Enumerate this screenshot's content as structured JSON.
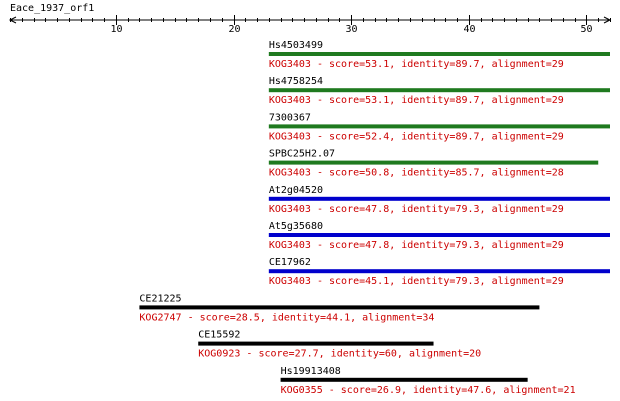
{
  "query_name": "Eace_1937_orf1",
  "axis": {
    "min": 1,
    "max": 52,
    "ticks": [
      10,
      20,
      30,
      40,
      50
    ]
  },
  "colors": {
    "axis": "#000000",
    "label": "#000000",
    "detail": "#cc0000",
    "green": "#1f7a1f",
    "blue": "#0000cc",
    "black": "#000000"
  },
  "hits": [
    {
      "name": "Hs4503499",
      "detail": "KOG3403 - score=53.1, identity=89.7, alignment=29",
      "start": 23,
      "end": 52,
      "color": "green"
    },
    {
      "name": "Hs4758254",
      "detail": "KOG3403 - score=53.1, identity=89.7, alignment=29",
      "start": 23,
      "end": 52,
      "color": "green"
    },
    {
      "name": "7300367",
      "detail": "KOG3403 - score=52.4, identity=89.7, alignment=29",
      "start": 23,
      "end": 52,
      "color": "green"
    },
    {
      "name": "SPBC25H2.07",
      "detail": "KOG3403 - score=50.8, identity=85.7, alignment=28",
      "start": 23,
      "end": 51,
      "color": "green"
    },
    {
      "name": "At2g04520",
      "detail": "KOG3403 - score=47.8, identity=79.3, alignment=29",
      "start": 23,
      "end": 52,
      "color": "blue"
    },
    {
      "name": "At5g35680",
      "detail": "KOG3403 - score=47.8, identity=79.3, alignment=29",
      "start": 23,
      "end": 52,
      "color": "blue"
    },
    {
      "name": "CE17962",
      "detail": "KOG3403 - score=45.1, identity=79.3, alignment=29",
      "start": 23,
      "end": 52,
      "color": "blue"
    },
    {
      "name": "CE21225",
      "detail": "KOG2747 - score=28.5, identity=44.1, alignment=34",
      "start": 12,
      "end": 46,
      "color": "black"
    },
    {
      "name": "CE15592",
      "detail": "KOG0923 - score=27.7, identity=60, alignment=20",
      "start": 17,
      "end": 37,
      "color": "black"
    },
    {
      "name": "Hs19913408",
      "detail": "KOG0355 - score=26.9, identity=47.6, alignment=21",
      "start": 24,
      "end": 45,
      "color": "black"
    }
  ]
}
